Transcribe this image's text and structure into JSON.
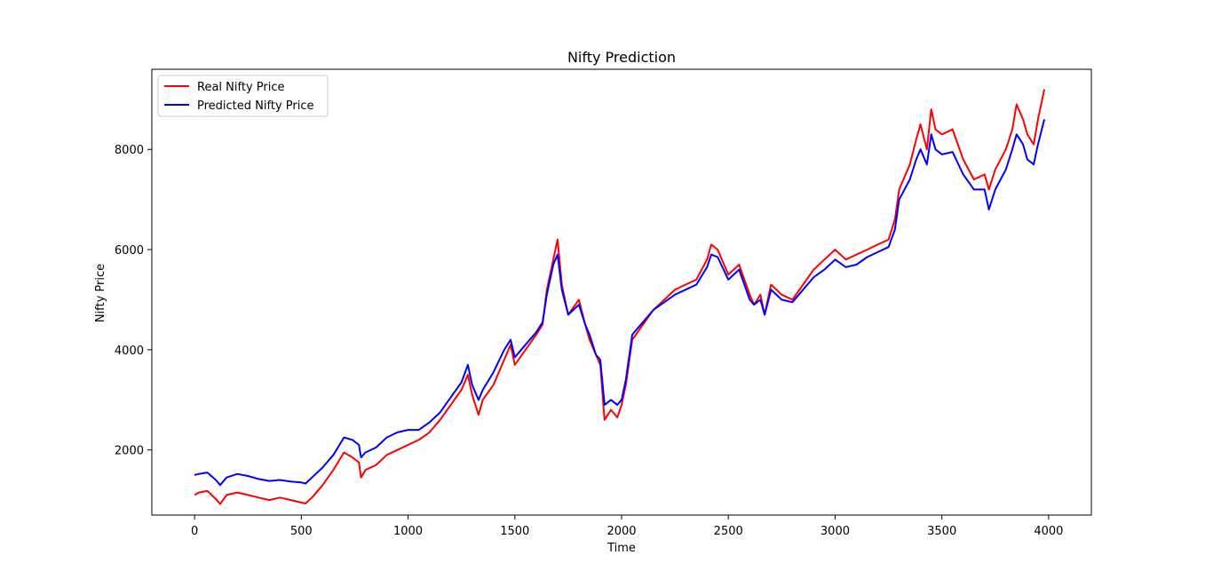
{
  "chart_data": {
    "type": "line",
    "title": "Nifty Prediction",
    "xlabel": "Time",
    "ylabel": "Nifty Price",
    "xlim": [
      -200,
      4200
    ],
    "ylim": [
      700,
      9600
    ],
    "xticks": [
      0,
      500,
      1000,
      1500,
      2000,
      2500,
      3000,
      3500,
      4000
    ],
    "xtick_labels": [
      "0",
      "500",
      "1000",
      "1500",
      "2000",
      "2500",
      "3000",
      "3500",
      "4000"
    ],
    "yticks": [
      2000,
      4000,
      6000,
      8000
    ],
    "ytick_labels": [
      "2000",
      "4000",
      "6000",
      "8000"
    ],
    "grid": false,
    "legend_position": "top-left",
    "series": [
      {
        "name": "Real Nifty Price",
        "color": "#ff0000",
        "x": [
          0,
          20,
          60,
          100,
          120,
          150,
          200,
          250,
          300,
          350,
          400,
          450,
          500,
          520,
          550,
          600,
          650,
          700,
          740,
          770,
          780,
          800,
          850,
          900,
          950,
          1000,
          1050,
          1100,
          1150,
          1200,
          1250,
          1280,
          1300,
          1330,
          1350,
          1400,
          1450,
          1480,
          1500,
          1550,
          1600,
          1630,
          1650,
          1680,
          1700,
          1720,
          1750,
          1800,
          1830,
          1850,
          1880,
          1900,
          1920,
          1950,
          1980,
          2000,
          2020,
          2050,
          2100,
          2150,
          2200,
          2250,
          2300,
          2350,
          2400,
          2420,
          2450,
          2500,
          2550,
          2600,
          2620,
          2650,
          2670,
          2700,
          2750,
          2800,
          2850,
          2900,
          2950,
          3000,
          3050,
          3100,
          3150,
          3200,
          3250,
          3280,
          3300,
          3350,
          3380,
          3400,
          3430,
          3450,
          3470,
          3500,
          3550,
          3600,
          3650,
          3700,
          3720,
          3750,
          3800,
          3830,
          3850,
          3880,
          3900,
          3930,
          3950,
          3980
        ],
        "values": [
          1100,
          1150,
          1180,
          1020,
          920,
          1100,
          1150,
          1100,
          1050,
          1000,
          1050,
          1000,
          950,
          930,
          1050,
          1300,
          1600,
          1950,
          1850,
          1750,
          1450,
          1600,
          1700,
          1900,
          2000,
          2100,
          2200,
          2350,
          2600,
          2900,
          3200,
          3500,
          3100,
          2700,
          3000,
          3300,
          3800,
          4100,
          3700,
          4000,
          4300,
          4500,
          5200,
          5800,
          6200,
          5300,
          4700,
          5000,
          4500,
          4200,
          3900,
          3700,
          2600,
          2800,
          2650,
          2900,
          3300,
          4200,
          4500,
          4800,
          5000,
          5200,
          5300,
          5400,
          5800,
          6100,
          6000,
          5500,
          5700,
          5100,
          4900,
          5100,
          4700,
          5300,
          5100,
          5000,
          5300,
          5600,
          5800,
          6000,
          5800,
          5900,
          6000,
          6100,
          6200,
          6600,
          7200,
          7700,
          8200,
          8500,
          8000,
          8800,
          8400,
          8300,
          8400,
          7800,
          7400,
          7500,
          7200,
          7600,
          8000,
          8400,
          8900,
          8600,
          8300,
          8100,
          8600,
          9200
        ]
      },
      {
        "name": "Predicted Nifty Price",
        "color": "#0000ff",
        "x": [
          0,
          20,
          60,
          100,
          120,
          150,
          200,
          250,
          300,
          350,
          400,
          450,
          500,
          520,
          550,
          600,
          650,
          700,
          740,
          770,
          780,
          800,
          850,
          900,
          950,
          1000,
          1050,
          1100,
          1150,
          1200,
          1250,
          1280,
          1300,
          1330,
          1350,
          1400,
          1450,
          1480,
          1500,
          1550,
          1600,
          1630,
          1650,
          1680,
          1700,
          1720,
          1750,
          1800,
          1830,
          1850,
          1880,
          1900,
          1920,
          1950,
          1980,
          2000,
          2020,
          2050,
          2100,
          2150,
          2200,
          2250,
          2300,
          2350,
          2400,
          2420,
          2450,
          2500,
          2550,
          2600,
          2620,
          2650,
          2670,
          2700,
          2750,
          2800,
          2850,
          2900,
          2950,
          3000,
          3050,
          3100,
          3150,
          3200,
          3250,
          3280,
          3300,
          3350,
          3380,
          3400,
          3430,
          3450,
          3470,
          3500,
          3550,
          3600,
          3650,
          3700,
          3720,
          3750,
          3800,
          3830,
          3850,
          3880,
          3900,
          3930,
          3950,
          3980
        ],
        "values": [
          1500,
          1520,
          1550,
          1400,
          1300,
          1450,
          1520,
          1480,
          1420,
          1380,
          1400,
          1370,
          1350,
          1330,
          1450,
          1650,
          1900,
          2250,
          2200,
          2100,
          1850,
          1950,
          2050,
          2250,
          2350,
          2400,
          2400,
          2550,
          2750,
          3050,
          3350,
          3700,
          3300,
          3000,
          3200,
          3550,
          4000,
          4200,
          3850,
          4100,
          4350,
          4550,
          5100,
          5700,
          5900,
          5200,
          4700,
          4900,
          4500,
          4300,
          3900,
          3800,
          2900,
          3000,
          2900,
          3000,
          3400,
          4300,
          4550,
          4800,
          4950,
          5100,
          5200,
          5300,
          5650,
          5900,
          5850,
          5400,
          5600,
          5000,
          4900,
          5000,
          4700,
          5200,
          5000,
          4950,
          5200,
          5450,
          5600,
          5800,
          5650,
          5700,
          5850,
          5950,
          6050,
          6400,
          7000,
          7400,
          7800,
          8000,
          7700,
          8300,
          8000,
          7900,
          7950,
          7500,
          7200,
          7200,
          6800,
          7200,
          7600,
          8000,
          8300,
          8100,
          7800,
          7700,
          8100,
          8600
        ]
      }
    ]
  }
}
